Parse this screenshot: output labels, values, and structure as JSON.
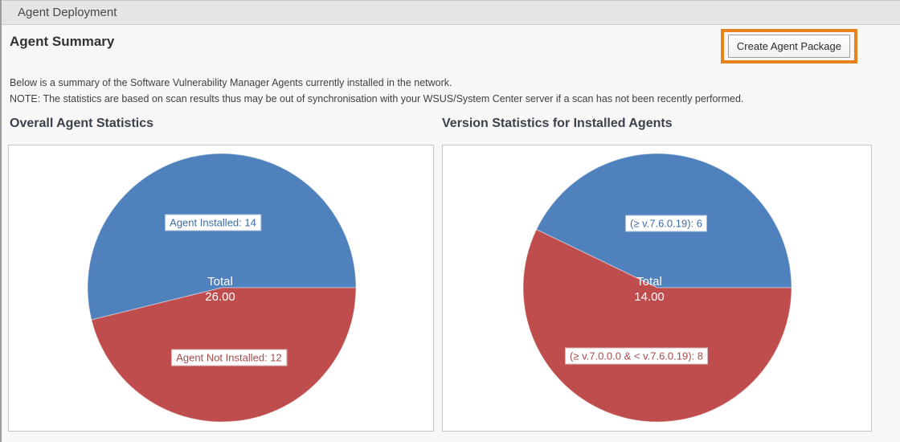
{
  "header": {
    "title": "Agent Deployment"
  },
  "summary": {
    "title": "Agent Summary",
    "create_button": "Create Agent Package",
    "description": "Below is a summary of the Software Vulnerability Manager Agents currently installed in the network.",
    "note": "NOTE: The statistics are based on scan results thus may be out of synchronisation with your WSUS/System Center server if a scan has not been recently performed."
  },
  "colors": {
    "accent_orange": "#e8821c",
    "pie_blue": "#4f81bd",
    "pie_red": "#bf4d4d",
    "blue_label_text": "#3a6da8",
    "red_label_text": "#a64b4b"
  },
  "chart_data": [
    {
      "type": "pie",
      "title": "Overall Agent Statistics",
      "center_label": "Total",
      "center_value": "26.00",
      "total": 26,
      "start_angle_deg": 0,
      "direction": "counterclockwise",
      "legend_position": "on-slice",
      "slices": [
        {
          "label": "Agent Installed",
          "value": 14,
          "color": "#4f81bd",
          "label_color": "#3a6da8",
          "display": "Agent Installed: 14"
        },
        {
          "label": "Agent Not Installed",
          "value": 12,
          "color": "#bf4d4d",
          "label_color": "#a64b4b",
          "display": "Agent Not Installed: 12"
        }
      ]
    },
    {
      "type": "pie",
      "title": "Version Statistics for Installed Agents",
      "center_label": "Total",
      "center_value": "14.00",
      "total": 14,
      "start_angle_deg": 0,
      "direction": "counterclockwise",
      "legend_position": "on-slice",
      "slices": [
        {
          "label": "(≥ v.7.6.0.19)",
          "value": 6,
          "color": "#4f81bd",
          "label_color": "#3a6da8",
          "display": "(≥ v.7.6.0.19): 6"
        },
        {
          "label": "(≥ v.7.0.0.0 & < v.7.6.0.19)",
          "value": 8,
          "color": "#bf4d4d",
          "label_color": "#a64b4b",
          "display": "(≥ v.7.0.0.0 & < v.7.6.0.19): 8"
        }
      ]
    }
  ]
}
